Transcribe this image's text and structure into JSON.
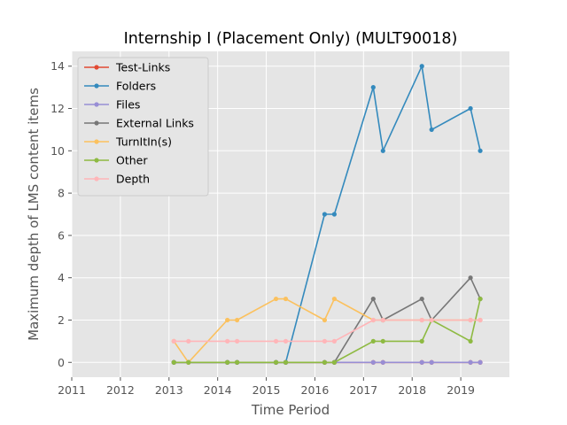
{
  "chart_data": {
    "type": "line",
    "title": "Internship I (Placement Only) (MULT90018)",
    "xlabel": "Time Period",
    "ylabel": "Maximum depth of LMS content items",
    "xlim": [
      2011,
      2020
    ],
    "ylim": [
      -0.7,
      14.7
    ],
    "x_ticks": [
      2011,
      2012,
      2013,
      2014,
      2015,
      2016,
      2017,
      2018,
      2019
    ],
    "y_ticks": [
      0,
      2,
      4,
      6,
      8,
      10,
      12,
      14
    ],
    "grid": true,
    "legend_position": "top-left",
    "x": [
      2013.1,
      2013.4,
      2014.2,
      2014.4,
      2015.2,
      2015.4,
      2016.2,
      2016.4,
      2017.2,
      2017.4,
      2018.2,
      2018.4,
      2019.2,
      2019.4
    ],
    "series": [
      {
        "name": "Test-Links",
        "color": "#E24A33",
        "values": [
          0,
          0,
          0,
          0,
          0,
          0,
          0,
          0,
          0,
          0,
          0,
          0,
          0,
          0
        ]
      },
      {
        "name": "Folders",
        "color": "#348ABD",
        "values": [
          0,
          0,
          0,
          0,
          0,
          0,
          7,
          7,
          13,
          10,
          14,
          11,
          12,
          10
        ]
      },
      {
        "name": "Files",
        "color": "#988ED5",
        "values": [
          0,
          0,
          0,
          0,
          0,
          0,
          0,
          0,
          0,
          0,
          0,
          0,
          0,
          0
        ]
      },
      {
        "name": "External Links",
        "color": "#777777",
        "values": [
          0,
          0,
          0,
          0,
          0,
          0,
          0,
          0,
          3,
          2,
          3,
          2,
          4,
          3
        ]
      },
      {
        "name": "TurnItIn(s)",
        "color": "#FBC15E",
        "values": [
          1,
          0,
          2,
          2,
          3,
          3,
          2,
          3,
          2,
          2,
          2,
          2,
          2,
          2
        ]
      },
      {
        "name": "Other",
        "color": "#8EBA42",
        "values": [
          0,
          0,
          0,
          0,
          0,
          0,
          0,
          0,
          1,
          1,
          1,
          2,
          1,
          3
        ]
      },
      {
        "name": "Depth",
        "color": "#FFB5B8",
        "values": [
          1,
          1,
          1,
          1,
          1,
          1,
          1,
          1,
          2,
          2,
          2,
          2,
          2,
          2
        ]
      }
    ]
  },
  "colors": {
    "plot_background": "#E5E5E5",
    "grid": "#FFFFFF",
    "text": "#555555"
  }
}
